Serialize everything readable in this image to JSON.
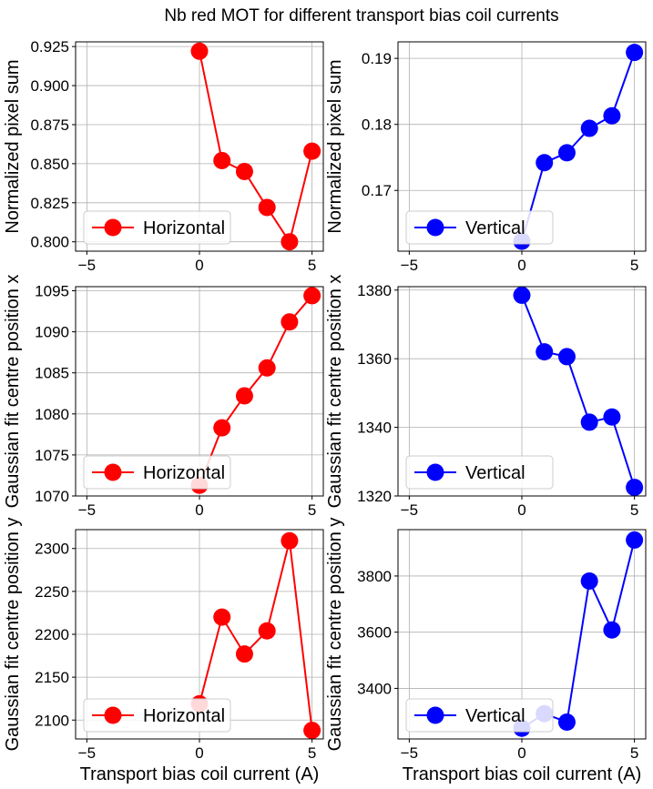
{
  "figure": {
    "title": "Nb red MOT for different transport bias coil currents"
  },
  "chart_data": [
    {
      "type": "line",
      "title": "",
      "xlabel": "",
      "ylabel": "Normalized pixel sum",
      "xlim": [
        -5.5,
        5.5
      ],
      "ylim": [
        0.794,
        0.928
      ],
      "xticks": [
        -5,
        0,
        5
      ],
      "yticks": [
        0.8,
        0.825,
        0.85,
        0.875,
        0.9,
        0.925
      ],
      "ytick_labels": [
        "0.800",
        "0.825",
        "0.850",
        "0.875",
        "0.900",
        "0.925"
      ],
      "xtick_labels": [
        "−5",
        "0",
        "5"
      ],
      "grid": true,
      "legend_position": "lower-left",
      "series": [
        {
          "name": "Horizontal",
          "color": "#ff0000",
          "marker": "circle",
          "x": [
            0,
            1,
            2,
            3,
            4,
            5
          ],
          "y": [
            0.922,
            0.852,
            0.845,
            0.822,
            0.8,
            0.858
          ]
        }
      ]
    },
    {
      "type": "line",
      "title": "",
      "xlabel": "",
      "ylabel": "Normalized pixel sum",
      "xlim": [
        -5.5,
        5.5
      ],
      "ylim": [
        0.1608,
        0.1925
      ],
      "xticks": [
        -5,
        0,
        5
      ],
      "yticks": [
        0.17,
        0.18,
        0.19
      ],
      "ytick_labels": [
        "0.17",
        "0.18",
        "0.19"
      ],
      "xtick_labels": [
        "−5",
        "0",
        "5"
      ],
      "grid": true,
      "legend_position": "lower-left",
      "series": [
        {
          "name": "Vertical",
          "color": "#0000ff",
          "marker": "circle",
          "x": [
            0,
            1,
            2,
            3,
            4,
            5
          ],
          "y": [
            0.1623,
            0.1742,
            0.1757,
            0.1794,
            0.1813,
            0.1909
          ]
        }
      ]
    },
    {
      "type": "line",
      "title": "",
      "xlabel": "",
      "ylabel": "Gaussian fit centre position x",
      "xlim": [
        -5.5,
        5.5
      ],
      "ylim": [
        1070,
        1095.5
      ],
      "xticks": [
        -5,
        0,
        5
      ],
      "yticks": [
        1070,
        1075,
        1080,
        1085,
        1090,
        1095
      ],
      "ytick_labels": [
        "1070",
        "1075",
        "1080",
        "1085",
        "1090",
        "1095"
      ],
      "xtick_labels": [
        "−5",
        "0",
        "5"
      ],
      "grid": true,
      "legend_position": "lower-left",
      "series": [
        {
          "name": "Horizontal",
          "color": "#ff0000",
          "marker": "circle",
          "x": [
            0,
            1,
            2,
            3,
            4,
            5
          ],
          "y": [
            1071.3,
            1078.3,
            1082.2,
            1085.6,
            1091.2,
            1094.4
          ]
        }
      ]
    },
    {
      "type": "line",
      "title": "",
      "xlabel": "",
      "ylabel": "Gaussian fit centre position x",
      "xlim": [
        -5.5,
        5.5
      ],
      "ylim": [
        1320,
        1381
      ],
      "xticks": [
        -5,
        0,
        5
      ],
      "yticks": [
        1320,
        1340,
        1360,
        1380
      ],
      "ytick_labels": [
        "1320",
        "1340",
        "1360",
        "1380"
      ],
      "xtick_labels": [
        "−5",
        "0",
        "5"
      ],
      "grid": true,
      "legend_position": "lower-left",
      "series": [
        {
          "name": "Vertical",
          "color": "#0000ff",
          "marker": "circle",
          "x": [
            0,
            1,
            2,
            3,
            4,
            5
          ],
          "y": [
            1378.5,
            1362.0,
            1360.6,
            1341.5,
            1343.0,
            1322.5
          ]
        }
      ]
    },
    {
      "type": "line",
      "title": "",
      "xlabel": "Transport bias coil current (A)",
      "ylabel": "Gaussian fit centre position y",
      "xlim": [
        -5.5,
        5.5
      ],
      "ylim": [
        2078,
        2322
      ],
      "xticks": [
        -5,
        0,
        5
      ],
      "yticks": [
        2100,
        2150,
        2200,
        2250,
        2300
      ],
      "ytick_labels": [
        "2100",
        "2150",
        "2200",
        "2250",
        "2300"
      ],
      "xtick_labels": [
        "−5",
        "0",
        "5"
      ],
      "grid": true,
      "legend_position": "lower-left",
      "series": [
        {
          "name": "Horizontal",
          "color": "#ff0000",
          "marker": "circle",
          "x": [
            0,
            1,
            2,
            3,
            4,
            5
          ],
          "y": [
            2119,
            2220,
            2177,
            2204,
            2309,
            2088
          ]
        }
      ]
    },
    {
      "type": "line",
      "title": "",
      "xlabel": "Transport bias coil current (A)",
      "ylabel": "Gaussian fit centre position y",
      "xlim": [
        -5.5,
        5.5
      ],
      "ylim": [
        3220,
        3965
      ],
      "xticks": [
        -5,
        0,
        5
      ],
      "yticks": [
        3400,
        3600,
        3800
      ],
      "ytick_labels": [
        "3400",
        "3600",
        "3800"
      ],
      "xtick_labels": [
        "−5",
        "0",
        "5"
      ],
      "grid": true,
      "legend_position": "lower-left",
      "series": [
        {
          "name": "Vertical",
          "color": "#0000ff",
          "marker": "circle",
          "x": [
            0,
            1,
            2,
            3,
            4,
            5
          ],
          "y": [
            3258,
            3310,
            3280,
            3782,
            3608,
            3928
          ]
        }
      ]
    }
  ]
}
